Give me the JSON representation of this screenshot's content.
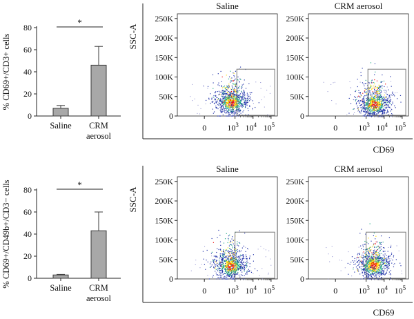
{
  "colors": {
    "bar_fill": "#a8a8a8",
    "bar_stroke": "#3a3a3a",
    "dot_low": "#2233aa",
    "dot_mid": "#22aa88",
    "dot_high": "#ffdd00",
    "dot_peak": "#ee1111",
    "gate": "#777777"
  },
  "chart_data": [
    {
      "type": "bar",
      "panel": "top-left",
      "categories": [
        [
          "Saline"
        ],
        [
          "CRM",
          "aerosol"
        ]
      ],
      "values": [
        7,
        46
      ],
      "errors": [
        2.5,
        17
      ],
      "ylabel": "% CD69+/CD3+ cells",
      "ylim": [
        0,
        80
      ],
      "yticks": [
        0,
        20,
        40,
        60,
        80
      ],
      "significance": "*"
    },
    {
      "type": "bar",
      "panel": "bottom-left",
      "categories": [
        [
          "Saline"
        ],
        [
          "CRM",
          "aerosol"
        ]
      ],
      "values": [
        3,
        43
      ],
      "errors": [
        0.5,
        17
      ],
      "ylabel": "% CD69+/CD49b+/CD3− cells",
      "ylim": [
        0,
        80
      ],
      "yticks": [
        0,
        20,
        40,
        60,
        80
      ],
      "significance": "*"
    },
    {
      "type": "scatter",
      "panel": "top-right",
      "ylabel": "SSC-A",
      "xlabel": "CD69",
      "yticks": [
        "0",
        "50K",
        "100K",
        "150K",
        "200K",
        "250K"
      ],
      "xticks": [
        "0",
        "10",
        "10",
        "10"
      ],
      "xtick_exponents": [
        "",
        "3",
        "4",
        "5"
      ],
      "plots": [
        {
          "title": "Saline",
          "cluster_x_decades": 2.8,
          "cluster_y_k": 30,
          "gate_x_decades": [
            3.1,
            5.2
          ],
          "gate_y_k": [
            0,
            120
          ]
        },
        {
          "title": "CRM aerosol",
          "cluster_x_decades": 3.45,
          "cluster_y_k": 25,
          "gate_x_decades": [
            3.1,
            5.2
          ],
          "gate_y_k": [
            0,
            120
          ]
        }
      ]
    },
    {
      "type": "scatter",
      "panel": "bottom-right",
      "ylabel": "SSC-A",
      "xlabel": "CD69",
      "yticks": [
        "0",
        "50K",
        "100K",
        "150K",
        "200K",
        "250K"
      ],
      "xticks": [
        "0",
        "10",
        "10",
        "10"
      ],
      "xtick_exponents": [
        "",
        "3",
        "4",
        "5"
      ],
      "plots": [
        {
          "title": "Saline",
          "cluster_x_decades": 2.75,
          "cluster_y_k": 28,
          "gate_x_decades": [
            3.0,
            5.2
          ],
          "gate_y_k": [
            0,
            120
          ]
        },
        {
          "title": "CRM aerosol",
          "cluster_x_decades": 3.4,
          "cluster_y_k": 30,
          "gate_x_decades": [
            3.0,
            5.2
          ],
          "gate_y_k": [
            0,
            120
          ]
        }
      ]
    }
  ]
}
